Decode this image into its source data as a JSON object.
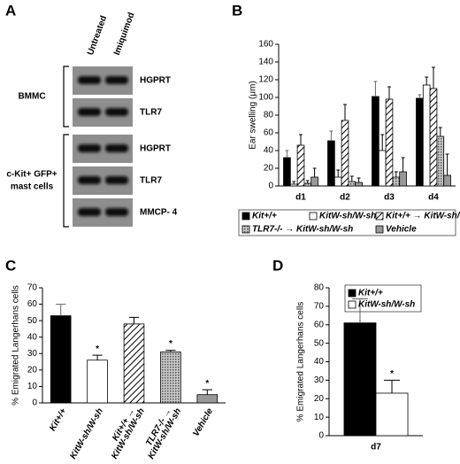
{
  "panel_labels": [
    "A",
    "B",
    "C",
    "D"
  ],
  "gel": {
    "columns": [
      "Untreated",
      "Imiquimod"
    ],
    "groups": [
      {
        "label": [
          "BMMC"
        ],
        "rows": [
          "HGPRT",
          "TLR7"
        ]
      },
      {
        "label": [
          "c-Kit+ GFP+",
          "mast cells"
        ],
        "rows": [
          "HGPRT",
          "TLR7",
          "MMCP- 4"
        ]
      }
    ]
  },
  "chart_data": [
    {
      "type": "bar",
      "y_label": "Ear swelling (μm)",
      "categories": [
        "d1",
        "d2",
        "d3",
        "d4"
      ],
      "ylim": [
        0,
        160
      ],
      "yticks": [
        0,
        20,
        40,
        60,
        80,
        100,
        120,
        140,
        160
      ],
      "legend": "bottom",
      "series": [
        {
          "name": "Kit+/+",
          "color": "#000000",
          "pattern": "solid",
          "values": [
            32,
            51,
            101,
            99
          ],
          "errors": [
            8,
            11,
            17,
            4
          ]
        },
        {
          "name": "KitW-sh/W-sh",
          "color": "#ffffff",
          "pattern": "solid",
          "values": [
            2,
            10,
            40,
            114
          ],
          "errors": [
            3,
            8,
            18,
            9
          ]
        },
        {
          "name": "Kit+/+ → KitW-sh/W-sh",
          "color": "#ffffff",
          "pattern": "diagonal",
          "values": [
            46,
            74,
            98,
            110
          ],
          "errors": [
            12,
            18,
            14,
            24
          ]
        },
        {
          "name": "TLR7-/- → KitW-sh/W-sh",
          "color": "#aaaaaa",
          "pattern": "dots",
          "values": [
            3,
            5,
            10,
            56
          ],
          "errors": [
            3,
            6,
            6,
            10
          ]
        },
        {
          "name": "Vehicle",
          "color": "#999999",
          "pattern": "solid",
          "values": [
            10,
            4,
            16,
            12
          ],
          "errors": [
            10,
            5,
            16,
            24
          ]
        }
      ]
    },
    {
      "type": "bar",
      "y_label": "% Emigrated Langerhans cells",
      "categories": [
        [
          "Kit+/+"
        ],
        [
          "KitW-sh/W-sh"
        ],
        [
          "Kit+/+ →",
          "KitW-sh/W-sh"
        ],
        [
          "TLR7-/- →",
          "KitW-sh/W-sh"
        ],
        [
          "Vehicle"
        ]
      ],
      "ylim": [
        0,
        70
      ],
      "yticks": [
        0,
        10,
        20,
        30,
        40,
        50,
        60,
        70
      ],
      "values": [
        53,
        26,
        48,
        31,
        5
      ],
      "errors": [
        7,
        3,
        4,
        1,
        3
      ],
      "colors": [
        "#000000",
        "#ffffff",
        "#ffffff",
        "#aaaaaa",
        "#999999"
      ],
      "patterns": [
        "solid",
        "solid",
        "diagonal",
        "dots",
        "solid"
      ],
      "annotations": [
        null,
        "*",
        null,
        "*",
        "*"
      ]
    },
    {
      "type": "bar",
      "y_label": "% Emigrated Langerhans cells",
      "categories": [
        "d7"
      ],
      "ylim": [
        0,
        80
      ],
      "yticks": [
        0,
        10,
        20,
        30,
        40,
        50,
        60,
        70,
        80
      ],
      "legend": "upper right",
      "series": [
        {
          "name": "Kit+/+",
          "color": "#000000",
          "pattern": "solid",
          "values": [
            61
          ],
          "errors": [
            13
          ],
          "annotations": [
            null
          ]
        },
        {
          "name": "KitW-sh/W-sh",
          "color": "#ffffff",
          "pattern": "solid",
          "values": [
            23
          ],
          "errors": [
            7
          ],
          "annotations": [
            "*"
          ]
        }
      ]
    }
  ]
}
